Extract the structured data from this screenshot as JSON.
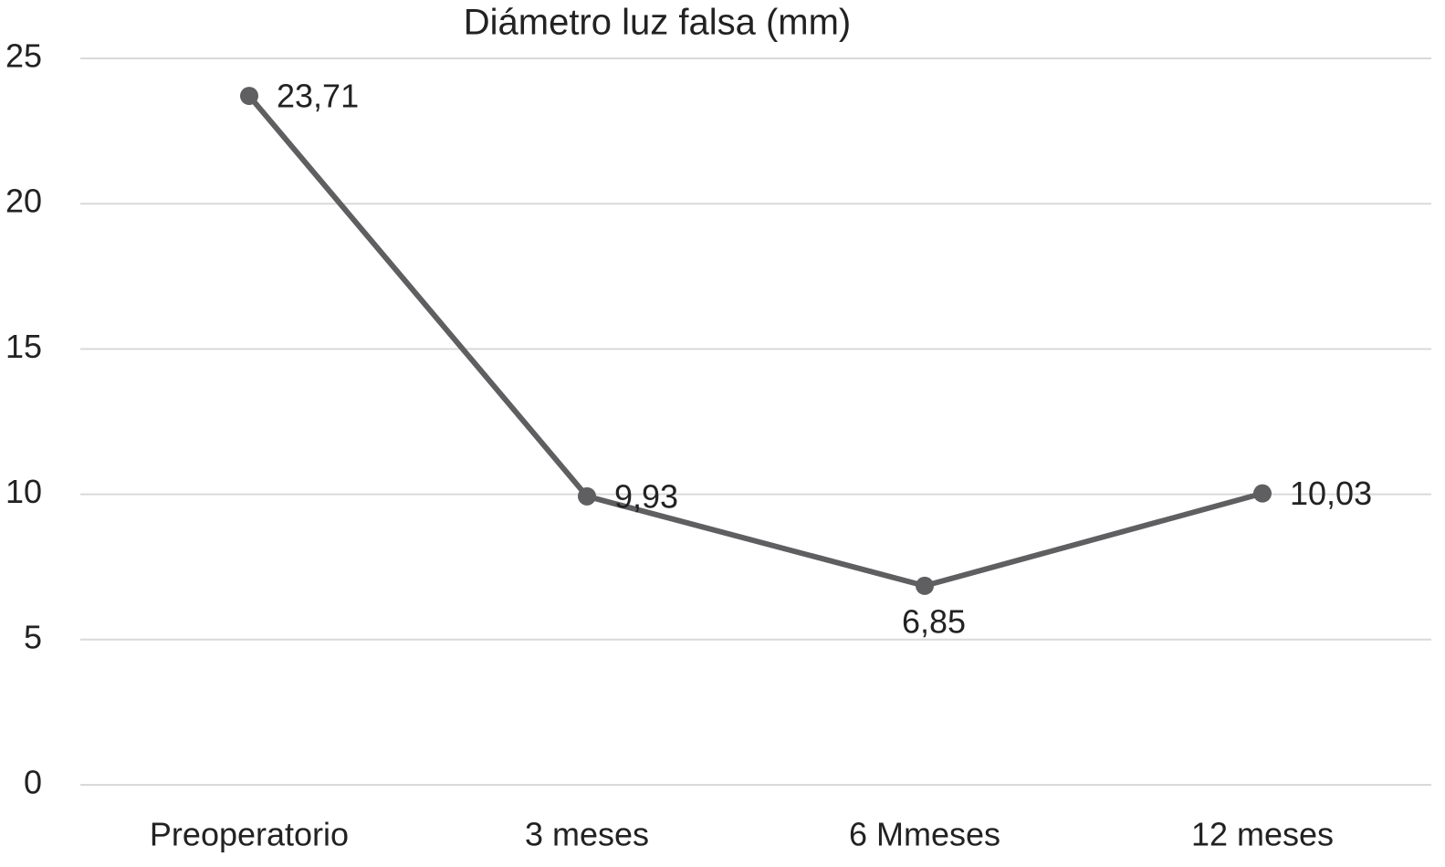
{
  "chart_data": {
    "type": "line",
    "title": "Diámetro luz falsa (mm)",
    "categories": [
      "Preoperatorio",
      "3 meses",
      "6 Mmeses",
      "12 meses"
    ],
    "values": [
      23.71,
      9.93,
      6.85,
      10.03
    ],
    "value_labels": [
      "23,71",
      "9,93",
      "6,85",
      "10,03"
    ],
    "color": "#5f5f61",
    "ylim": [
      0,
      25
    ],
    "yticks": [
      0,
      5,
      10,
      15,
      20,
      25
    ],
    "grid": true
  }
}
